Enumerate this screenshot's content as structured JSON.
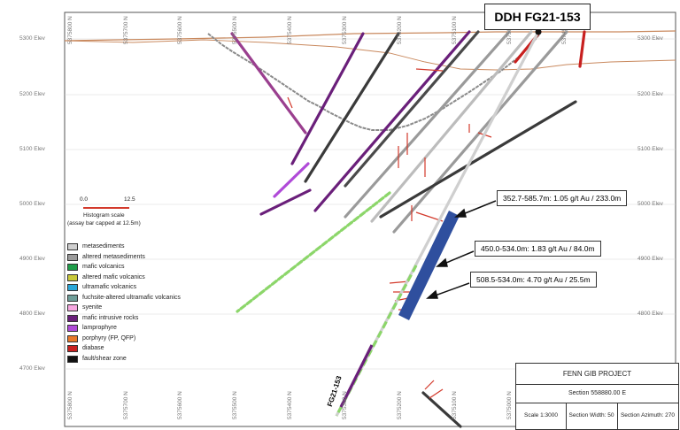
{
  "title": "DDH FG21-153",
  "hole_label": "FG21-153",
  "elevations": {
    "left": [
      "5300 Elev",
      "5200 Elev",
      "5100 Elev",
      "5000 Elev",
      "4900 Elev",
      "4800 Elev",
      "4700 Elev"
    ],
    "right": [
      "5300 Elev",
      "5200 Elev",
      "5100 Elev",
      "5000 Elev",
      "4900 Elev",
      "4800 Elev"
    ]
  },
  "northings_top": [
    "5375800 N",
    "5375700 N",
    "5375600 N",
    "5375500 N",
    "5375400 N",
    "5375300 N",
    "5375200 N",
    "5375100 N",
    "5375000 N",
    "5374900 N"
  ],
  "northings_bottom": [
    "5375800 N",
    "5375700 N",
    "5375600 N",
    "5375500 N",
    "5375400 N",
    "5375300 N",
    "5375200 N",
    "5375100 N",
    "5375000 N"
  ],
  "histogram_scale": {
    "min_label": "0.0",
    "max_label": "12.5",
    "caption_1": "Histogram scale",
    "caption_2": "(assay bar capped at 12.5m)"
  },
  "legend": [
    {
      "label": "metasediments",
      "color": "#cfcfcf"
    },
    {
      "label": "altered metasediments",
      "color": "#9a9a9a"
    },
    {
      "label": "mafic volcanics",
      "color": "#1f9e4a"
    },
    {
      "label": "altered mafic volcanics",
      "color": "#c9c93a"
    },
    {
      "label": "ultramafic volcanics",
      "color": "#2aa7d8"
    },
    {
      "label": "fuchsite-altered ultramafic volcanics",
      "color": "#6f9f9a"
    },
    {
      "label": "syenite",
      "color": "#f6a7e0"
    },
    {
      "label": "mafic intrusive rocks",
      "color": "#6a1f7a"
    },
    {
      "label": "lamprophyre",
      "color": "#b04ad8"
    },
    {
      "label": "porphyry (FP, QFP)",
      "color": "#e8782a"
    },
    {
      "label": "diabase",
      "color": "#c8201f"
    },
    {
      "label": "fault/shear zone",
      "color": "#111111"
    }
  ],
  "intercepts": [
    {
      "label": "352.7-585.7m: 1.05 g/t Au / 233.0m"
    },
    {
      "label": "450.0-534.0m: 1.83 g/t Au / 84.0m"
    },
    {
      "label": "508.5-534.0m: 4.70 g/t Au / 25.5m"
    }
  ],
  "title_block": {
    "project": "FENN GIB PROJECT",
    "section": "Section 558880.00 E",
    "scale": "Scale 1:3000",
    "width": "Section Width: 50",
    "azimuth": "Section Azimuth: 270"
  },
  "colors": {
    "topography": "#c9895e",
    "intercept_zone": "#2f4f9e",
    "histogram": "#d33a2c",
    "pit_outline": "#7a7a7a"
  }
}
